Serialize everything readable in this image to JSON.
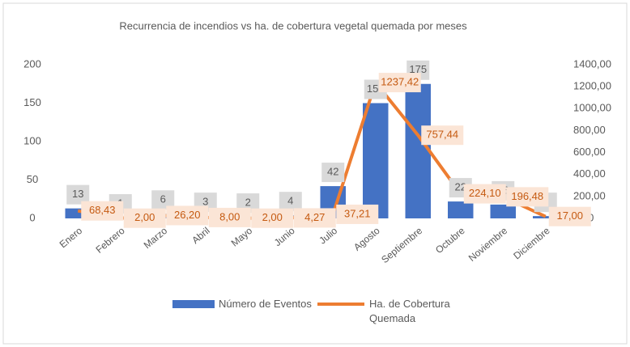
{
  "chart_data": {
    "type": "combo",
    "title": "Recurrencia de incendios vs ha. de cobertura vegetal quemada por meses",
    "categories": [
      "Enero",
      "Febrero",
      "Marzo",
      "Abril",
      "Mayo",
      "Junio",
      "Julio",
      "Agosto",
      "Septiembre",
      "Octubre",
      "Noviembre",
      "Diciembre"
    ],
    "series": [
      {
        "name": "Número de Eventos",
        "type": "bar",
        "color": "#4472c4",
        "axis": "y",
        "values": [
          13,
          1,
          6,
          3,
          2,
          4,
          42,
          150,
          175,
          22,
          18,
          3
        ]
      },
      {
        "name": "Ha. de Cobertura Quemada",
        "type": "line",
        "color": "#ed7d31",
        "axis": "y2",
        "values": [
          68.43,
          2.0,
          26.2,
          8.0,
          2.0,
          4.27,
          37.21,
          1237.42,
          757.44,
          224.1,
          196.48,
          17.0
        ],
        "value_labels": [
          "68,43",
          "2,00",
          "26,20",
          "8,00",
          "2,00",
          "4,27",
          "37,21",
          "1237,42",
          "757,44",
          "224,10",
          "196,48",
          "17,00"
        ]
      }
    ],
    "ylim": [
      0,
      200
    ],
    "yticks": [
      0,
      50,
      100,
      150,
      200
    ],
    "y2lim": [
      0,
      1400
    ],
    "y2ticks": [
      {
        "value": 0,
        "label": "0,00"
      },
      {
        "value": 200,
        "label": "200,00"
      },
      {
        "value": 400,
        "label": "400,00"
      },
      {
        "value": 600,
        "label": "600,00"
      },
      {
        "value": 800,
        "label": "800,00"
      },
      {
        "value": 1000,
        "label": "1000,00"
      },
      {
        "value": 1200,
        "label": "1200,00"
      },
      {
        "value": 1400,
        "label": "1400,00"
      }
    ],
    "legend": "bottom",
    "grid": false
  }
}
